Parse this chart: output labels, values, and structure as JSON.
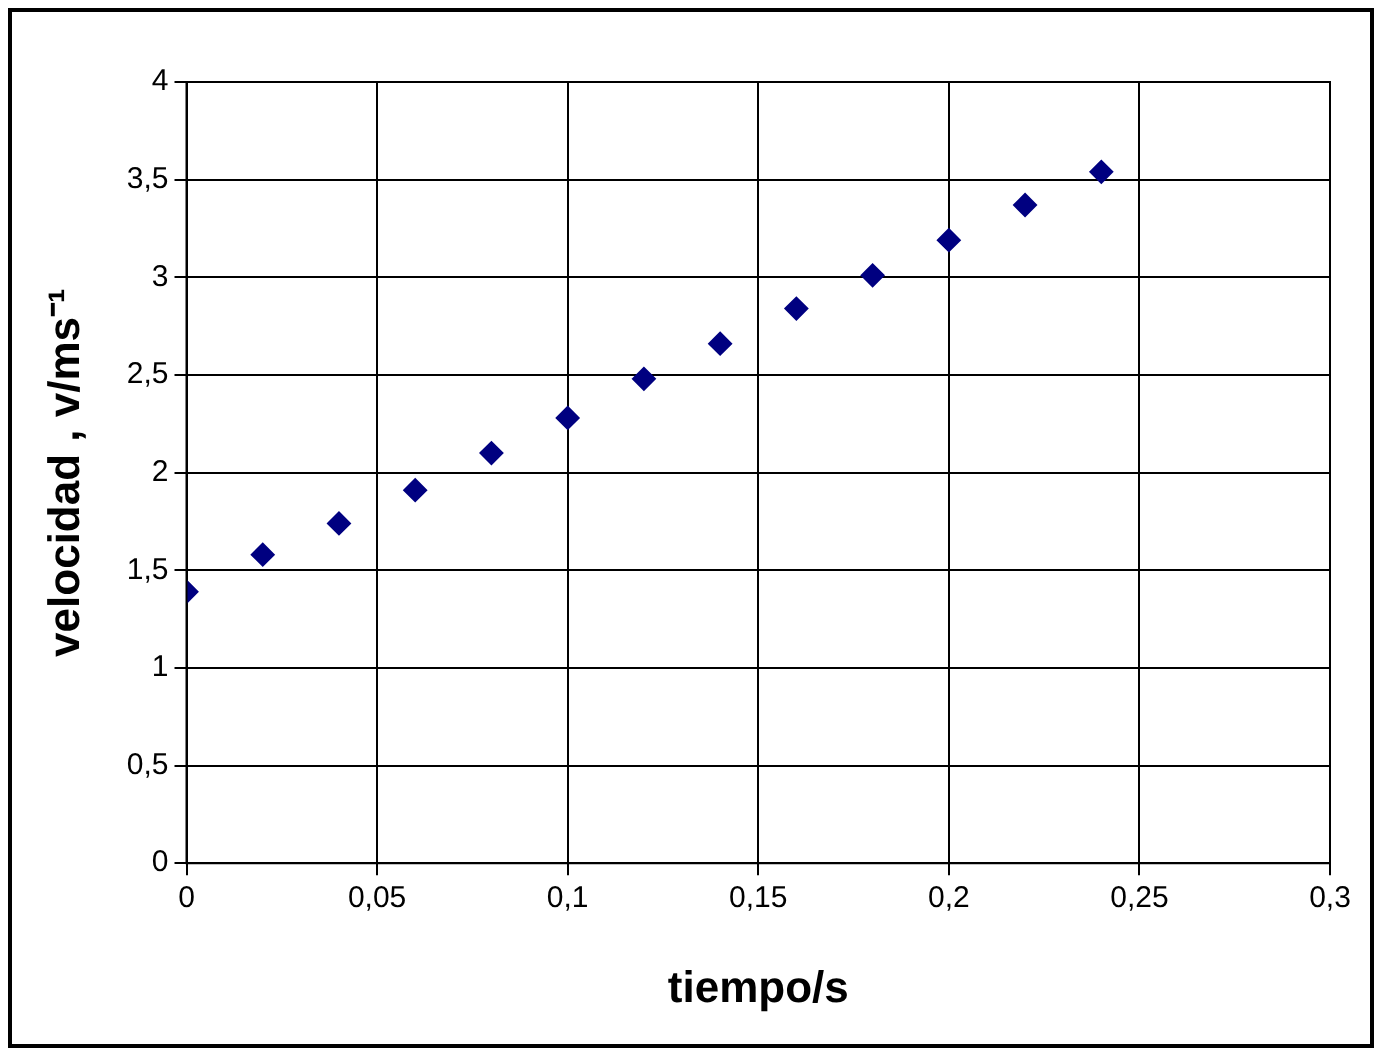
{
  "chart_data": {
    "type": "scatter",
    "xlabel": "tiempo/s",
    "ylabel": "velocidad , v/ms⁻¹",
    "x": [
      0,
      0.02,
      0.04,
      0.06,
      0.08,
      0.1,
      0.12,
      0.14,
      0.16,
      0.18,
      0.2,
      0.22,
      0.24
    ],
    "series": [
      {
        "color": "#000080",
        "values": [
          1.39,
          1.58,
          1.74,
          1.91,
          2.1,
          2.28,
          2.48,
          2.66,
          2.84,
          3.01,
          3.19,
          3.37,
          3.54
        ]
      }
    ],
    "xlim": [
      0,
      0.3
    ],
    "xticks": [
      0,
      {
        "value": 0.05,
        "label": "0,05"
      },
      {
        "value": 0.1,
        "label": "0,1"
      },
      {
        "value": 0.15,
        "label": "0,15"
      },
      {
        "value": 0.2,
        "label": "0,2"
      },
      {
        "value": 0.25,
        "label": "0,25"
      },
      {
        "value": 0.3,
        "label": "0,3"
      }
    ],
    "ylim": [
      0,
      4
    ],
    "yticks": [
      0,
      {
        "value": 0.5,
        "label": "0,5"
      },
      1,
      {
        "value": 1.5,
        "label": "1,5"
      },
      2,
      {
        "value": 2.5,
        "label": "2,5"
      },
      3,
      {
        "value": 3.5,
        "label": "3,5"
      },
      4
    ],
    "grid": true,
    "legend": false,
    "marker": "diamond"
  }
}
